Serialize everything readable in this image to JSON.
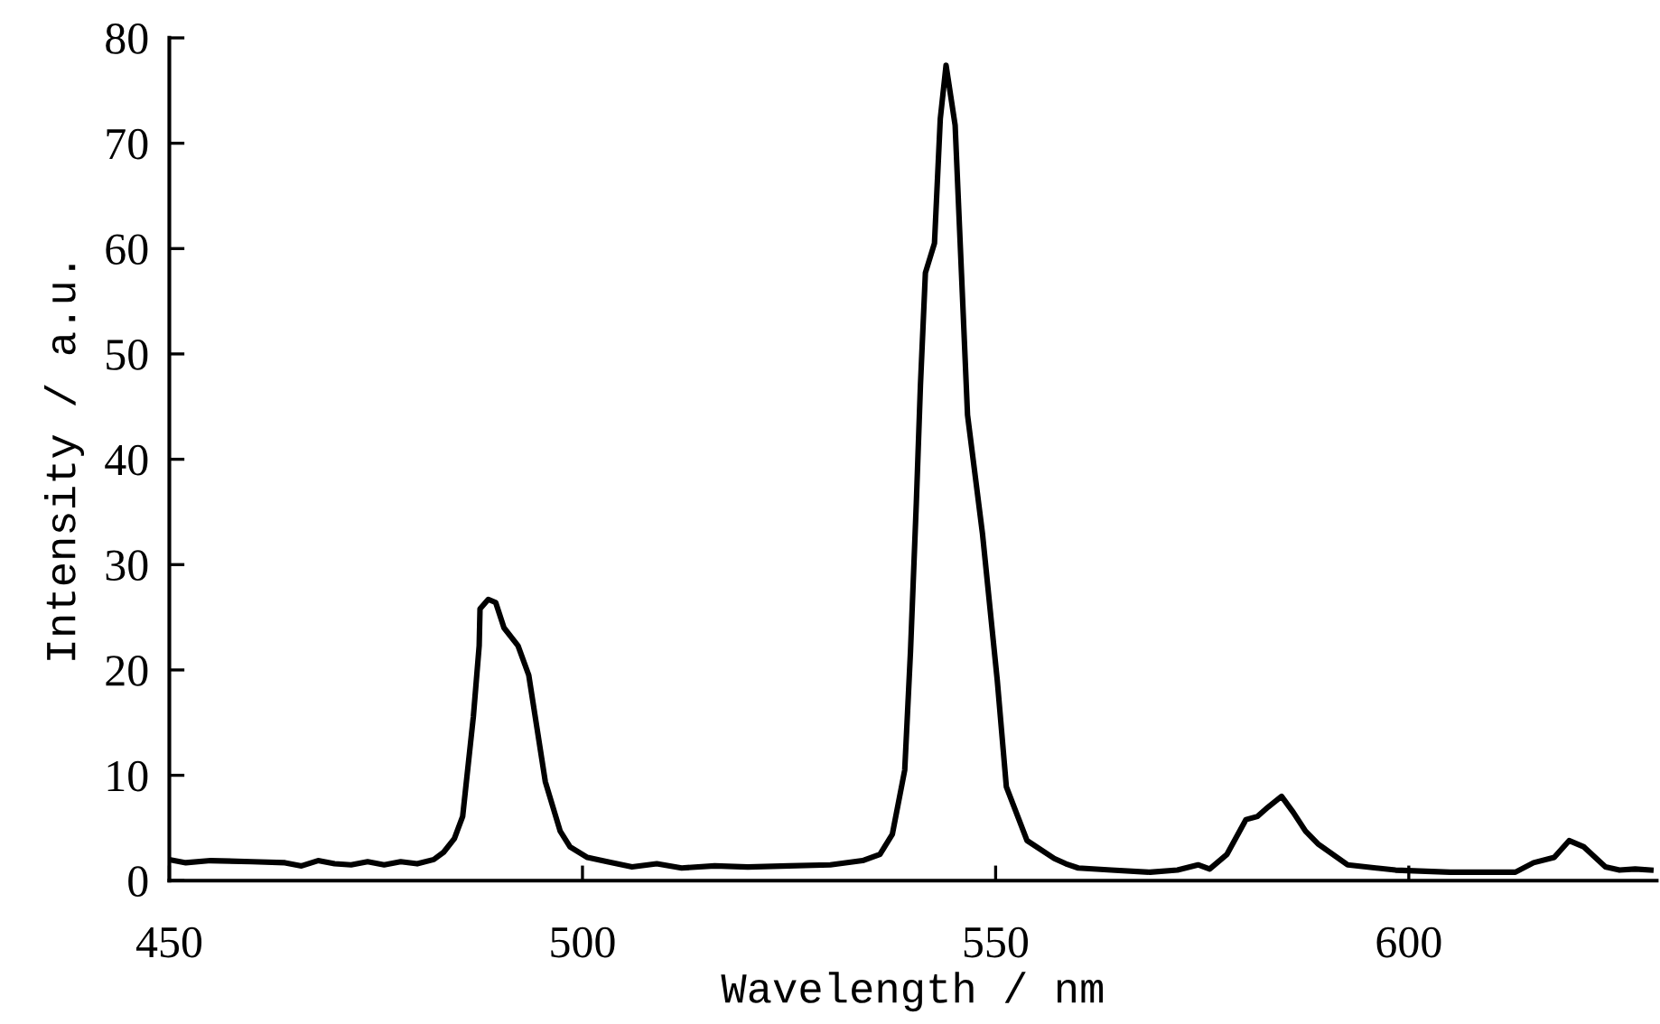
{
  "chart_data": {
    "type": "line",
    "xlabel": "Wavelength / nm",
    "ylabel": "Intensity / a.u.",
    "xlim": [
      450,
      630
    ],
    "xticks": [
      450,
      500,
      550,
      600
    ],
    "ylim": [
      0,
      80
    ],
    "yticks": [
      0,
      10,
      20,
      30,
      40,
      50,
      60,
      70,
      80
    ],
    "grid": false,
    "marker": "none",
    "line_style": "solid",
    "series": [
      {
        "color": "#000000",
        "x": [
          450,
          452,
          455,
          460,
          464,
          466,
          468,
          470,
          472,
          474,
          476,
          478,
          480,
          482,
          483.2,
          484.5,
          485.5,
          486.8,
          487.5,
          487.6,
          488.6,
          489.5,
          490.5,
          492.2,
          493.5,
          495.5,
          497.3,
          498.5,
          500.6,
          503,
          506,
          509,
          512,
          516,
          520,
          525,
          530,
          533.9,
          536,
          537.5,
          539.0,
          539.7,
          540.4,
          540.9,
          541.5,
          542.6,
          543.3,
          544.0,
          545.1,
          546.6,
          548.4,
          550.2,
          551.3,
          553.8,
          557.1,
          558.5,
          560,
          564,
          568.7,
          572,
          574.5,
          575.9,
          578,
          580.3,
          581.7,
          583,
          584.6,
          586,
          587.5,
          589.0,
          592.6,
          598.4,
          605,
          612.9,
          615.1,
          617.6,
          619.4,
          621.2,
          623.8,
          625.5,
          627.4,
          629.3
        ],
        "values": [
          2.0,
          1.7,
          1.9,
          1.8,
          1.7,
          1.4,
          1.9,
          1.6,
          1.5,
          1.8,
          1.5,
          1.8,
          1.6,
          2.0,
          2.7,
          4.0,
          6.1,
          15.6,
          22.3,
          25.8,
          26.7,
          26.4,
          24.0,
          22.3,
          19.5,
          9.4,
          4.7,
          3.2,
          2.2,
          1.8,
          1.3,
          1.6,
          1.2,
          1.4,
          1.3,
          1.4,
          1.5,
          1.9,
          2.5,
          4.4,
          10.5,
          21.8,
          35.8,
          47.0,
          57.7,
          60.5,
          72.3,
          77.4,
          71.7,
          44.2,
          33.0,
          19.0,
          8.9,
          3.8,
          2.1,
          1.6,
          1.2,
          1.0,
          0.8,
          1.0,
          1.5,
          1.1,
          2.5,
          5.8,
          6.1,
          7.0,
          8.0,
          6.5,
          4.7,
          3.5,
          1.5,
          1.0,
          0.8,
          0.8,
          1.7,
          2.2,
          3.8,
          3.2,
          1.3,
          1.0,
          1.1,
          1.0
        ]
      }
    ]
  }
}
